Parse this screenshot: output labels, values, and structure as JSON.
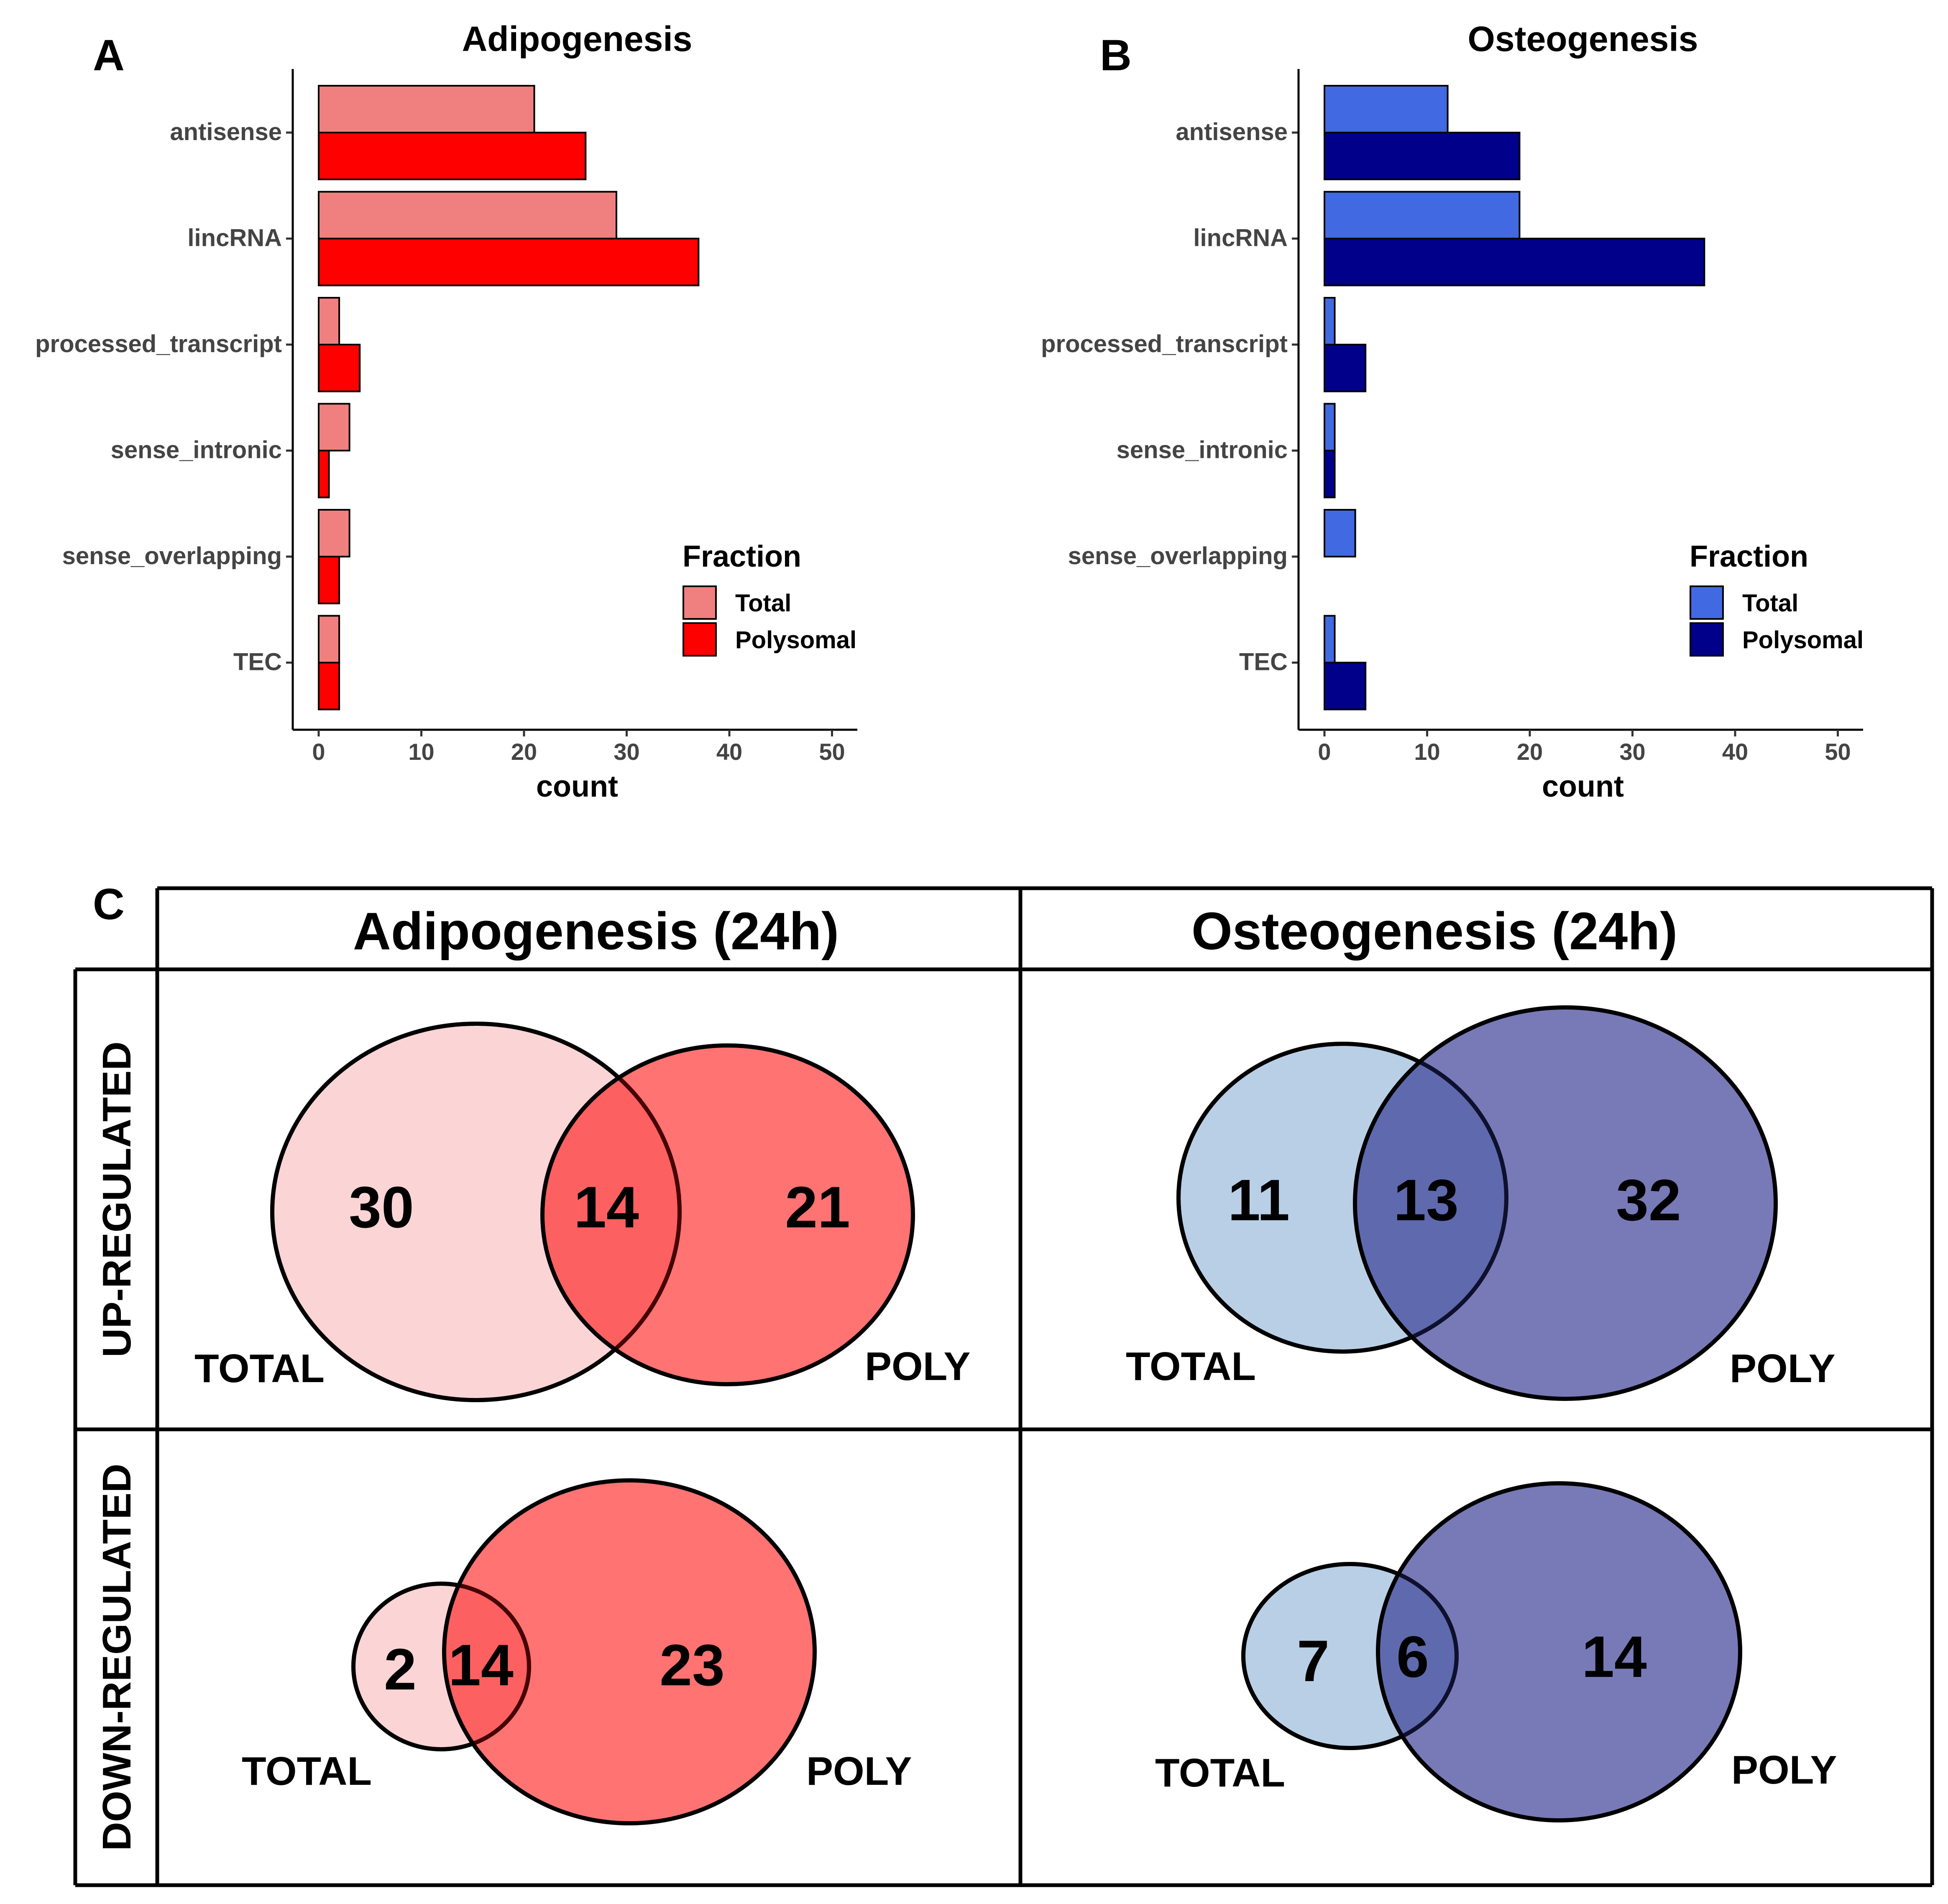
{
  "panel_letters": {
    "a": "A",
    "b": "B",
    "c": "C"
  },
  "chart_data": [
    {
      "type": "bar",
      "orientation": "horizontal",
      "panel": "A",
      "title": "Adipogenesis",
      "xlabel": "count",
      "ylabel": "",
      "xlim": [
        0,
        50
      ],
      "xticks": [
        0,
        10,
        20,
        30,
        40,
        50
      ],
      "categories": [
        "antisense",
        "lincRNA",
        "processed_transcript",
        "sense_intronic",
        "sense_overlapping",
        "TEC"
      ],
      "series": [
        {
          "name": "Total",
          "color": "#F08080",
          "values": [
            21,
            29,
            2,
            3,
            3,
            2
          ]
        },
        {
          "name": "Polysomal",
          "color": "#FF0000",
          "values": [
            26,
            37,
            4,
            1,
            2,
            2
          ]
        }
      ],
      "legend": {
        "title": "Fraction",
        "position": "right"
      }
    },
    {
      "type": "bar",
      "orientation": "horizontal",
      "panel": "B",
      "title": "Osteogenesis",
      "xlabel": "count",
      "ylabel": "",
      "xlim": [
        0,
        50
      ],
      "xticks": [
        0,
        10,
        20,
        30,
        40,
        50
      ],
      "categories": [
        "antisense",
        "lincRNA",
        "processed_transcript",
        "sense_intronic",
        "sense_overlapping",
        "TEC"
      ],
      "series": [
        {
          "name": "Total",
          "color": "#4169E1",
          "values": [
            12,
            19,
            1,
            1,
            3,
            1
          ]
        },
        {
          "name": "Polysomal",
          "color": "#00008B",
          "values": [
            19,
            37,
            4,
            1,
            0,
            4
          ]
        }
      ],
      "legend": {
        "title": "Fraction",
        "position": "right"
      }
    }
  ],
  "venn_grid": {
    "columns": [
      "Adipogenesis (24h)",
      "Osteogenesis (24h)"
    ],
    "rows": [
      "UP-REGULATED",
      "DOWN-REGULATED"
    ],
    "set_labels": {
      "left": "TOTAL",
      "right": "POLY"
    },
    "colors": {
      "adipo_total": "#FBD5D6",
      "adipo_poly": "#FF7373",
      "adipo_overlap": "#FF5A5F",
      "osteo_total": "#B9CFE6",
      "osteo_poly": "#7478B8",
      "osteo_overlap": "#4C58A6"
    },
    "diagrams": [
      {
        "id": "adipo-up",
        "total_only": "30",
        "overlap": "14",
        "poly_only": "21"
      },
      {
        "id": "osteo-up",
        "total_only": "11",
        "overlap": "13",
        "poly_only": "32"
      },
      {
        "id": "adipo-down",
        "total_only": "2",
        "overlap": "14",
        "poly_only": "23"
      },
      {
        "id": "osteo-down",
        "total_only": "7",
        "overlap": "6",
        "poly_only": "14"
      }
    ]
  }
}
